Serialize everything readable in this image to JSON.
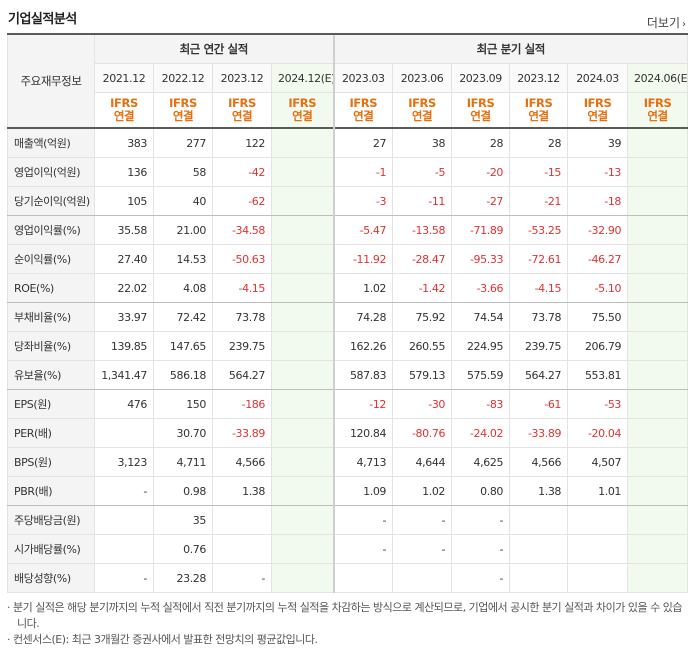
{
  "header": {
    "title": "기업실적분석",
    "more_label": "더보기",
    "more_arrow": "›"
  },
  "table": {
    "corner_label": "주요재무정보",
    "group_annual": "최근 연간 실적",
    "group_quarter": "최근 분기 실적",
    "periods": [
      "2021.12",
      "2022.12",
      "2023.12",
      "2024.12(E)",
      "2023.03",
      "2023.06",
      "2023.09",
      "2023.12",
      "2024.03",
      "2024.06(E)"
    ],
    "ifrs_top": "IFRS",
    "ifrs_bottom": "연결",
    "rows": [
      {
        "label": "매출액(억원)",
        "values": [
          "383",
          "277",
          "122",
          "",
          "27",
          "38",
          "28",
          "28",
          "39",
          ""
        ]
      },
      {
        "label": "영업이익(억원)",
        "values": [
          "136",
          "58",
          "-42",
          "",
          "-1",
          "-5",
          "-20",
          "-15",
          "-13",
          ""
        ]
      },
      {
        "label": "당기순이익(억원)",
        "values": [
          "105",
          "40",
          "-62",
          "",
          "-3",
          "-11",
          "-27",
          "-21",
          "-18",
          ""
        ]
      },
      {
        "label": "영업이익률(%)",
        "values": [
          "35.58",
          "21.00",
          "-34.58",
          "",
          "-5.47",
          "-13.58",
          "-71.89",
          "-53.25",
          "-32.90",
          ""
        ]
      },
      {
        "label": "순이익률(%)",
        "values": [
          "27.40",
          "14.53",
          "-50.63",
          "",
          "-11.92",
          "-28.47",
          "-95.33",
          "-72.61",
          "-46.27",
          ""
        ]
      },
      {
        "label": "ROE(%)",
        "values": [
          "22.02",
          "4.08",
          "-4.15",
          "",
          "1.02",
          "-1.42",
          "-3.66",
          "-4.15",
          "-5.10",
          ""
        ]
      },
      {
        "label": "부채비율(%)",
        "values": [
          "33.97",
          "72.42",
          "73.78",
          "",
          "74.28",
          "75.92",
          "74.54",
          "73.78",
          "75.50",
          ""
        ]
      },
      {
        "label": "당좌비율(%)",
        "values": [
          "139.85",
          "147.65",
          "239.75",
          "",
          "162.26",
          "260.55",
          "224.95",
          "239.75",
          "206.79",
          ""
        ]
      },
      {
        "label": "유보율(%)",
        "values": [
          "1,341.47",
          "586.18",
          "564.27",
          "",
          "587.83",
          "579.13",
          "575.59",
          "564.27",
          "553.81",
          ""
        ]
      },
      {
        "label": "EPS(원)",
        "values": [
          "476",
          "150",
          "-186",
          "",
          "-12",
          "-30",
          "-83",
          "-61",
          "-53",
          ""
        ]
      },
      {
        "label": "PER(배)",
        "values": [
          "",
          "30.70",
          "-33.89",
          "",
          "120.84",
          "-80.76",
          "-24.02",
          "-33.89",
          "-20.04",
          ""
        ]
      },
      {
        "label": "BPS(원)",
        "values": [
          "3,123",
          "4,711",
          "4,566",
          "",
          "4,713",
          "4,644",
          "4,625",
          "4,566",
          "4,507",
          ""
        ]
      },
      {
        "label": "PBR(배)",
        "values": [
          "-",
          "0.98",
          "1.38",
          "",
          "1.09",
          "1.02",
          "0.80",
          "1.38",
          "1.01",
          ""
        ]
      },
      {
        "label": "주당배당금(원)",
        "values": [
          "",
          "35",
          "",
          "",
          "-",
          "-",
          "-",
          "",
          "",
          ""
        ]
      },
      {
        "label": "시가배당률(%)",
        "values": [
          "",
          "0.76",
          "",
          "",
          "-",
          "-",
          "-",
          "",
          "",
          ""
        ]
      },
      {
        "label": "배당성향(%)",
        "values": [
          "-",
          "23.28",
          "-",
          "",
          "",
          "",
          "-",
          "",
          "",
          ""
        ]
      }
    ]
  },
  "notes": [
    "분기 실적은 해당 분기까지의 누적 실적에서 직전 분기까지의 누적 실적을 차감하는 방식으로 계산되므로, 기업에서 공시한 분기 실적과 차이가 있을 수 있습니다.",
    "컨센서스(E): 최근 3개월간 증권사에서 발표한 전망치의 평균값입니다."
  ],
  "colors": {
    "negative": "#e23131",
    "ifrs": "#e4700f",
    "estimate_bg": "#f2f9ee"
  }
}
